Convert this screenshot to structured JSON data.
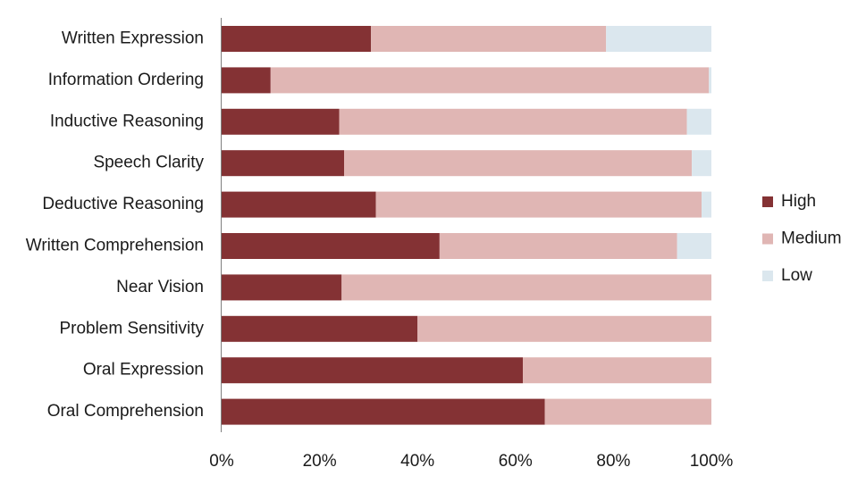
{
  "chart_data": {
    "type": "bar",
    "orientation": "horizontal",
    "stacked": true,
    "normalized": true,
    "categories": [
      "Written Expression",
      "Information Ordering",
      "Inductive Reasoning",
      "Speech Clarity",
      "Deductive Reasoning",
      "Written Comprehension",
      "Near Vision",
      "Problem Sensitivity",
      "Oral Expression",
      "Oral Comprehension"
    ],
    "series": [
      {
        "name": "High",
        "color": "#843234",
        "values": [
          30.5,
          10,
          24,
          25,
          31.5,
          44.5,
          24.5,
          40,
          61.5,
          66
        ]
      },
      {
        "name": "Medium",
        "color": "#e0b6b4",
        "values": [
          48,
          89.5,
          71,
          71,
          66.5,
          48.5,
          75.5,
          60,
          38.5,
          34
        ]
      },
      {
        "name": "Low",
        "color": "#dbe7ee",
        "values": [
          21.5,
          0.5,
          5,
          4,
          2,
          7,
          0,
          0,
          0,
          0
        ]
      }
    ],
    "x_ticks": [
      "0%",
      "20%",
      "40%",
      "60%",
      "80%",
      "100%"
    ],
    "xlim": [
      0,
      100
    ],
    "grid": false,
    "legend_position": "right"
  }
}
